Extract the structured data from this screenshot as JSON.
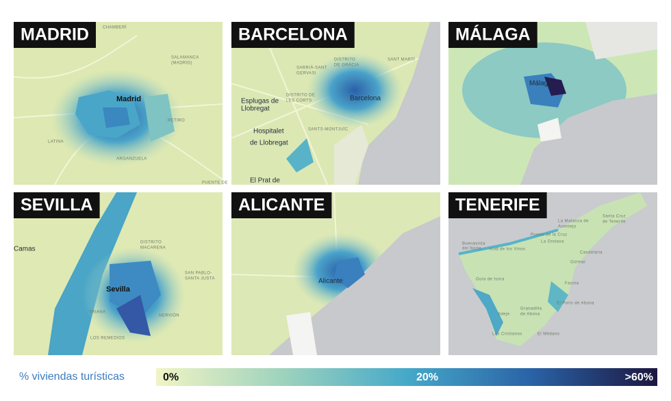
{
  "panels": [
    {
      "title": "MADRID",
      "labels": [
        "CHAMBERÍ",
        "SALAMANCA",
        "(MADRID)",
        "Madrid",
        "RETIRO",
        "LATINA",
        "ARGANZUELA",
        "PUENTE DE"
      ]
    },
    {
      "title": "BARCELONA",
      "labels": [
        "SARRIÀ-SANT",
        "GERVASI",
        "DISTRITO",
        "DE GRÀCIA",
        "SANT MARTÍ",
        "Esplugas de",
        "Llobregat",
        "DISTRITO DE",
        "LES CORTS",
        "Barcelona",
        "SANTS-MONTJUÏC",
        "Hospitalet",
        "de Llobregat",
        "El Prat de"
      ]
    },
    {
      "title": "MÁLAGA",
      "labels": [
        "Málaga"
      ]
    },
    {
      "title": "SEVILLA",
      "labels": [
        "Camas",
        "DISTRITO",
        "MACARENA",
        "SAN PABLO-",
        "SANTA JUSTA",
        "Sevilla",
        "TRIANA",
        "NERVIÓN",
        "LOS REMEDIOS"
      ]
    },
    {
      "title": "ALICANTE",
      "labels": [
        "Alicante"
      ]
    },
    {
      "title": "TENERIFE",
      "labels": [
        "Santa Cruz",
        "de Tenerife",
        "La Matanza de",
        "Acentejo",
        "Puerto de la Cruz",
        "La Orotava",
        "Buenavista",
        "del Norte",
        "Icod de los Vinos",
        "Candelaria",
        "Güímar",
        "Guía de Isora",
        "Fasnia",
        "Adeje",
        "Granadilla",
        "de Abona",
        "El Porís de Abona",
        "Los Cristianos",
        "El Médano"
      ]
    }
  ],
  "legend": {
    "title": "% viviendas turísticas",
    "stops": [
      "0%",
      "20%",
      ">60%"
    ],
    "colors": [
      "#f1f4c4",
      "#9fd3bd",
      "#45a9c9",
      "#2a62a6",
      "#1c1740"
    ]
  }
}
